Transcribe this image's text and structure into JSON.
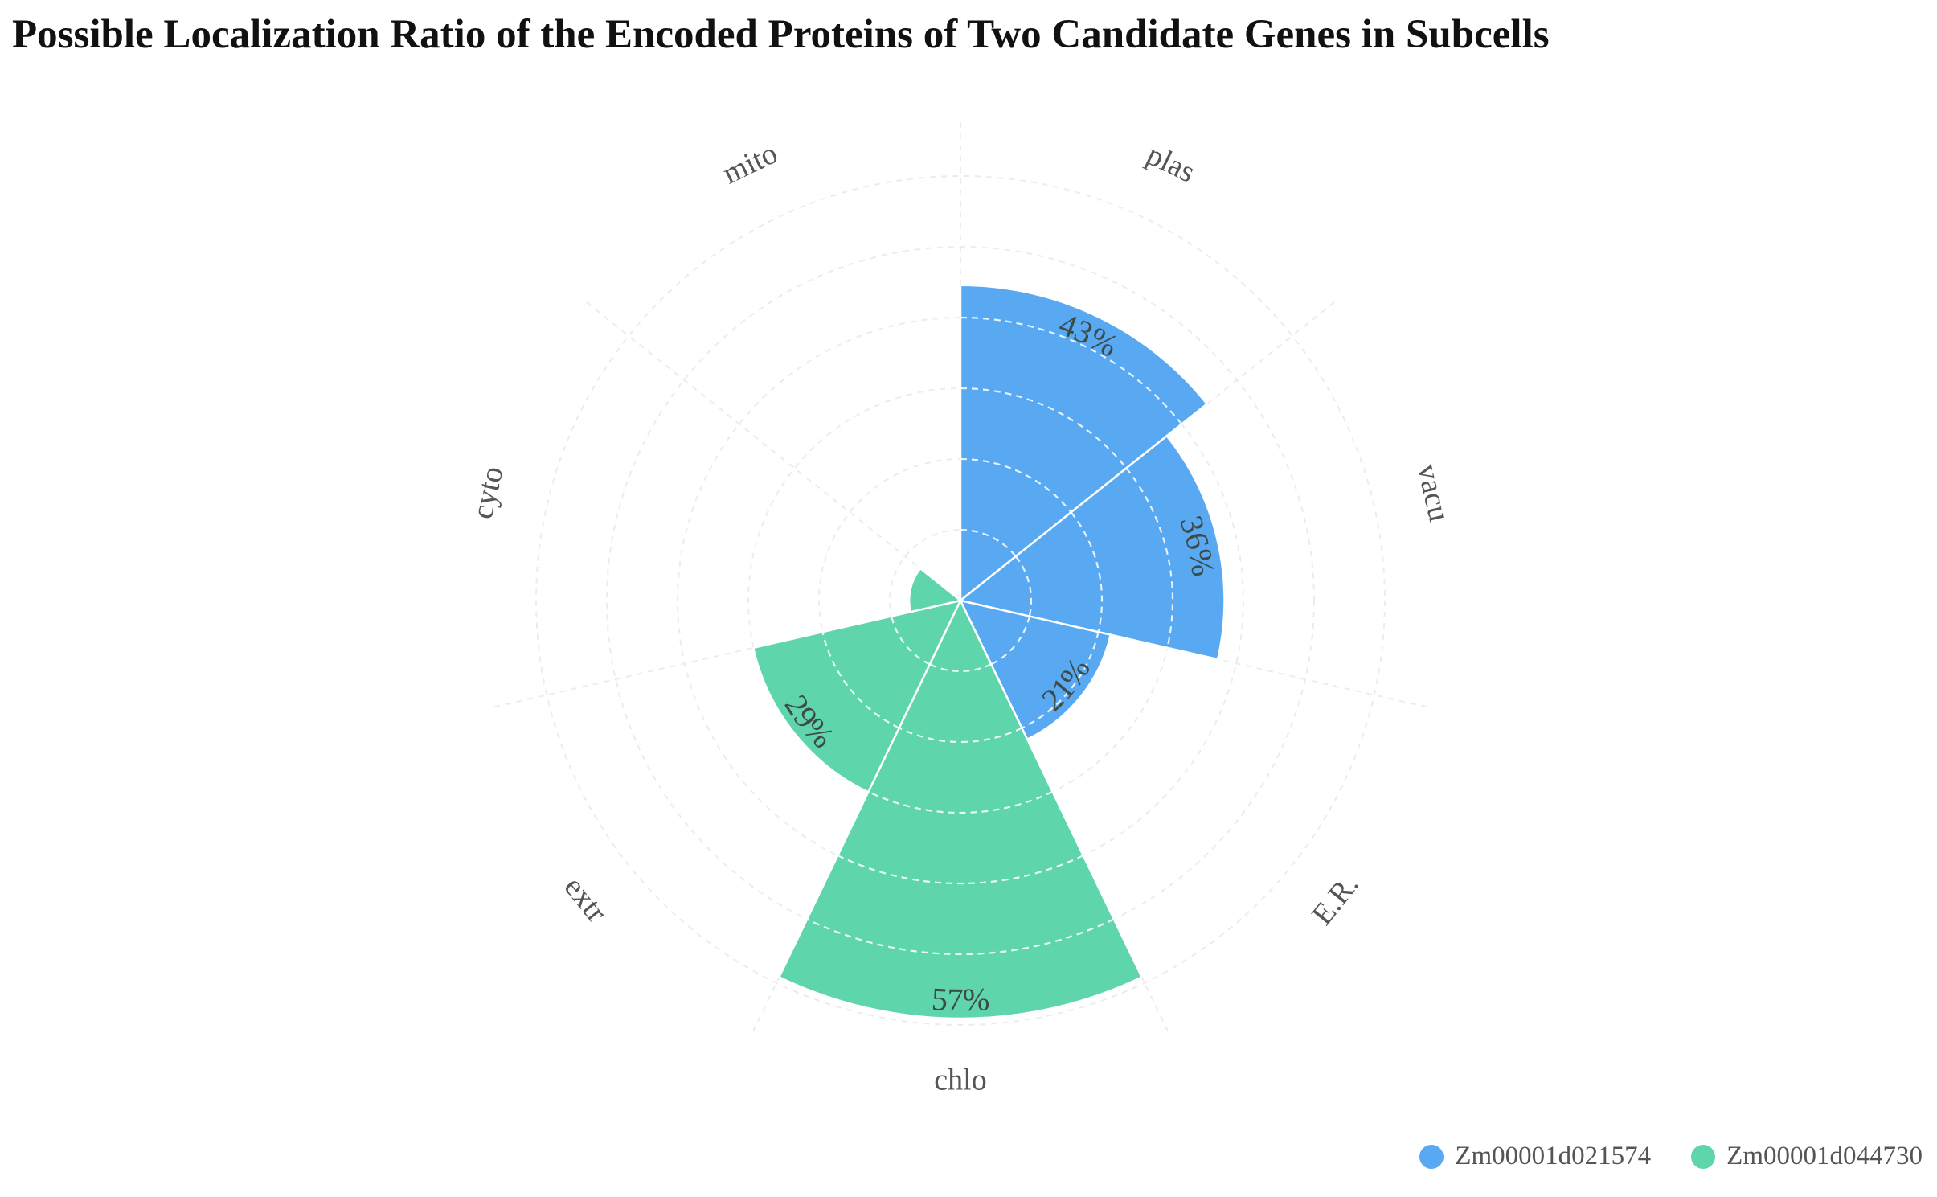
{
  "title": "Possible Localization Ratio of the Encoded Proteins of Two Candidate Genes in Subcells",
  "chart_data": {
    "type": "rose",
    "title": "Possible Localization Ratio of the Encoded Proteins of Two Candidate Genes in Subcells",
    "categories": [
      "plas",
      "vacu",
      "E.R.",
      "chlo",
      "extr",
      "cyto",
      "mito"
    ],
    "series": [
      {
        "name": "Zm00001d021574",
        "color": "#58A9F2",
        "values": [
          43,
          36,
          21,
          0,
          0,
          0,
          0
        ],
        "labels": [
          "43%",
          "36%",
          "21%",
          "",
          "",
          "",
          ""
        ]
      },
      {
        "name": "Zm00001d044730",
        "color": "#5FD5AC",
        "values": [
          0,
          0,
          0,
          57,
          29,
          7,
          0
        ],
        "labels": [
          "",
          "",
          "",
          "57%",
          "29%",
          "",
          ""
        ]
      }
    ],
    "radial_max": 57,
    "grid": true,
    "legend_position": "bottom-right"
  },
  "legend": {
    "items": [
      {
        "label": "Zm00001d021574",
        "color": "#58A9F2"
      },
      {
        "label": "Zm00001d044730",
        "color": "#5FD5AC"
      }
    ]
  }
}
